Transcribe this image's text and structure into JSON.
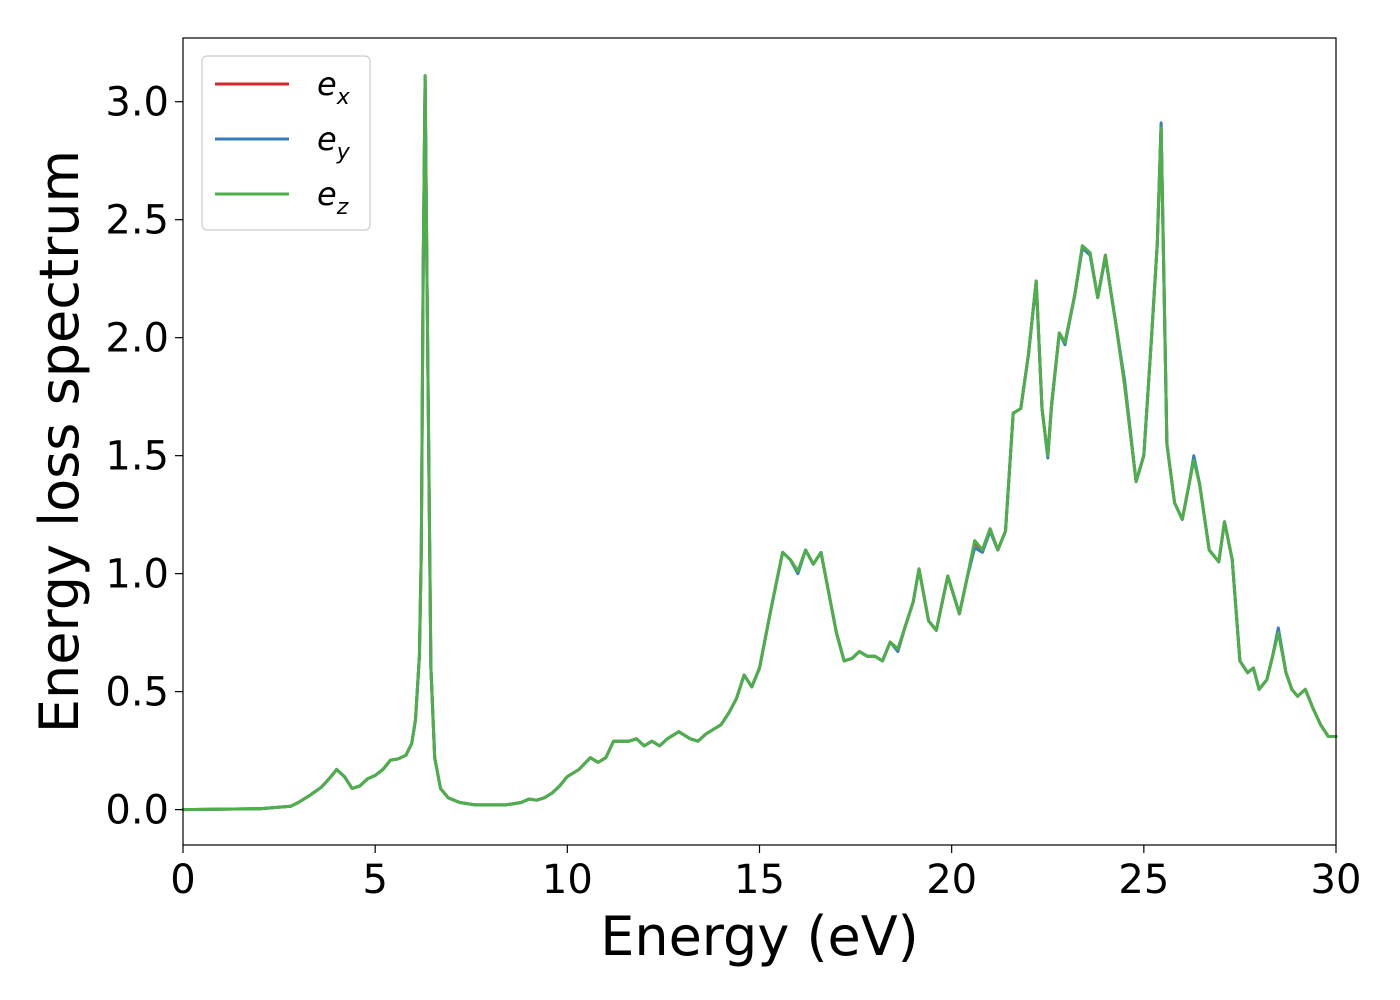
{
  "chart_data": {
    "type": "line",
    "title": "",
    "xlabel": "Energy (eV)",
    "ylabel": "Energy loss spectrum",
    "xlim": [
      0,
      30
    ],
    "ylim": [
      -0.15,
      3.27
    ],
    "xticks": [
      0,
      5,
      10,
      15,
      20,
      25,
      30
    ],
    "xtick_labels": [
      "0",
      "5",
      "10",
      "15",
      "20",
      "25",
      "30"
    ],
    "yticks": [
      0.0,
      0.5,
      1.0,
      1.5,
      2.0,
      2.5,
      3.0
    ],
    "ytick_labels": [
      "0.0",
      "0.5",
      "1.0",
      "1.5",
      "2.0",
      "2.5",
      "3.0"
    ],
    "grid": false,
    "legend_position": "top-left",
    "x": [
      0.0,
      2.0,
      2.8,
      3.0,
      3.3,
      3.6,
      3.8,
      4.0,
      4.2,
      4.4,
      4.6,
      4.8,
      5.0,
      5.2,
      5.4,
      5.6,
      5.8,
      5.95,
      6.05,
      6.15,
      6.2,
      6.25,
      6.3,
      6.35,
      6.45,
      6.55,
      6.7,
      6.9,
      7.2,
      7.6,
      8.0,
      8.4,
      8.8,
      9.0,
      9.2,
      9.4,
      9.6,
      9.8,
      10.0,
      10.3,
      10.6,
      10.8,
      11.0,
      11.2,
      11.4,
      11.6,
      11.8,
      12.0,
      12.2,
      12.4,
      12.6,
      12.9,
      13.2,
      13.4,
      13.6,
      13.8,
      14.0,
      14.2,
      14.4,
      14.6,
      14.8,
      15.0,
      15.3,
      15.6,
      15.8,
      16.0,
      16.2,
      16.4,
      16.6,
      16.8,
      17.0,
      17.2,
      17.4,
      17.6,
      17.8,
      18.0,
      18.2,
      18.4,
      18.6,
      18.8,
      19.0,
      19.15,
      19.4,
      19.6,
      19.9,
      20.2,
      20.4,
      20.6,
      20.8,
      21.0,
      21.2,
      21.4,
      21.6,
      21.8,
      22.0,
      22.2,
      22.35,
      22.5,
      22.6,
      22.8,
      22.95,
      23.2,
      23.4,
      23.6,
      23.8,
      24.0,
      24.1,
      24.3,
      24.5,
      24.8,
      25.0,
      25.2,
      25.35,
      25.45,
      25.6,
      25.8,
      26.0,
      26.2,
      26.3,
      26.45,
      26.7,
      26.95,
      27.1,
      27.3,
      27.5,
      27.7,
      27.85,
      28.0,
      28.2,
      28.35,
      28.5,
      28.7,
      28.85,
      29.0,
      29.2,
      29.4,
      29.6,
      29.8,
      30.0
    ],
    "series": [
      {
        "name": "e_x",
        "color": "#d62728",
        "values": [
          0.0,
          0.004,
          0.014,
          0.03,
          0.06,
          0.095,
          0.13,
          0.17,
          0.14,
          0.09,
          0.1,
          0.13,
          0.145,
          0.17,
          0.21,
          0.215,
          0.23,
          0.28,
          0.38,
          0.65,
          1.1,
          2.3,
          3.11,
          2.2,
          0.6,
          0.22,
          0.09,
          0.05,
          0.03,
          0.02,
          0.02,
          0.02,
          0.03,
          0.045,
          0.04,
          0.05,
          0.07,
          0.1,
          0.14,
          0.17,
          0.22,
          0.2,
          0.22,
          0.29,
          0.29,
          0.29,
          0.3,
          0.27,
          0.29,
          0.27,
          0.3,
          0.33,
          0.3,
          0.29,
          0.32,
          0.34,
          0.36,
          0.41,
          0.47,
          0.57,
          0.52,
          0.6,
          0.85,
          1.09,
          1.06,
          1.01,
          1.1,
          1.04,
          1.09,
          0.92,
          0.75,
          0.63,
          0.64,
          0.67,
          0.65,
          0.65,
          0.63,
          0.71,
          0.68,
          0.78,
          0.88,
          1.02,
          0.8,
          0.76,
          0.99,
          0.83,
          0.98,
          1.13,
          1.1,
          1.19,
          1.1,
          1.18,
          1.68,
          1.7,
          1.93,
          2.24,
          1.7,
          1.5,
          1.72,
          2.02,
          1.98,
          2.18,
          2.38,
          2.36,
          2.17,
          2.35,
          2.24,
          2.03,
          1.8,
          1.39,
          1.5,
          2.0,
          2.4,
          2.9,
          1.55,
          1.3,
          1.23,
          1.4,
          1.49,
          1.38,
          1.1,
          1.05,
          1.22,
          1.06,
          0.63,
          0.58,
          0.6,
          0.51,
          0.55,
          0.65,
          0.76,
          0.58,
          0.51,
          0.48,
          0.51,
          0.43,
          0.36,
          0.31,
          0.31
        ]
      },
      {
        "name": "e_y",
        "color": "#377eb8",
        "values": [
          0.0,
          0.004,
          0.014,
          0.03,
          0.06,
          0.095,
          0.13,
          0.17,
          0.14,
          0.09,
          0.1,
          0.13,
          0.145,
          0.17,
          0.21,
          0.215,
          0.23,
          0.28,
          0.38,
          0.65,
          1.1,
          2.3,
          3.11,
          2.2,
          0.6,
          0.22,
          0.09,
          0.05,
          0.03,
          0.02,
          0.02,
          0.02,
          0.03,
          0.045,
          0.04,
          0.05,
          0.07,
          0.1,
          0.14,
          0.17,
          0.22,
          0.2,
          0.22,
          0.29,
          0.29,
          0.29,
          0.3,
          0.27,
          0.29,
          0.27,
          0.3,
          0.33,
          0.3,
          0.29,
          0.32,
          0.34,
          0.36,
          0.41,
          0.47,
          0.57,
          0.52,
          0.6,
          0.85,
          1.09,
          1.06,
          1.0,
          1.1,
          1.04,
          1.09,
          0.92,
          0.75,
          0.63,
          0.64,
          0.67,
          0.65,
          0.65,
          0.63,
          0.71,
          0.67,
          0.78,
          0.88,
          1.02,
          0.8,
          0.76,
          0.99,
          0.83,
          0.98,
          1.11,
          1.09,
          1.18,
          1.1,
          1.18,
          1.68,
          1.7,
          1.93,
          2.24,
          1.7,
          1.49,
          1.71,
          2.02,
          1.97,
          2.18,
          2.38,
          2.35,
          2.17,
          2.34,
          2.24,
          2.03,
          1.82,
          1.39,
          1.5,
          2.0,
          2.4,
          2.91,
          1.55,
          1.3,
          1.23,
          1.4,
          1.5,
          1.38,
          1.1,
          1.05,
          1.22,
          1.06,
          0.63,
          0.58,
          0.6,
          0.51,
          0.55,
          0.65,
          0.77,
          0.58,
          0.51,
          0.48,
          0.51,
          0.43,
          0.36,
          0.31,
          0.31
        ]
      },
      {
        "name": "e_z",
        "color": "#4daf4a",
        "values": [
          0.0,
          0.004,
          0.014,
          0.03,
          0.06,
          0.095,
          0.13,
          0.17,
          0.14,
          0.09,
          0.1,
          0.13,
          0.145,
          0.17,
          0.21,
          0.215,
          0.23,
          0.28,
          0.38,
          0.65,
          1.1,
          2.3,
          3.11,
          2.2,
          0.6,
          0.22,
          0.09,
          0.05,
          0.03,
          0.02,
          0.02,
          0.02,
          0.03,
          0.045,
          0.04,
          0.05,
          0.07,
          0.1,
          0.14,
          0.17,
          0.22,
          0.2,
          0.22,
          0.29,
          0.29,
          0.29,
          0.3,
          0.27,
          0.29,
          0.27,
          0.3,
          0.33,
          0.3,
          0.29,
          0.32,
          0.34,
          0.36,
          0.41,
          0.47,
          0.57,
          0.52,
          0.6,
          0.85,
          1.09,
          1.06,
          1.01,
          1.1,
          1.04,
          1.09,
          0.92,
          0.75,
          0.63,
          0.64,
          0.67,
          0.65,
          0.65,
          0.63,
          0.71,
          0.68,
          0.78,
          0.88,
          1.02,
          0.8,
          0.76,
          0.99,
          0.83,
          0.98,
          1.14,
          1.1,
          1.19,
          1.1,
          1.18,
          1.68,
          1.7,
          1.93,
          2.24,
          1.7,
          1.5,
          1.72,
          2.02,
          1.98,
          2.18,
          2.39,
          2.36,
          2.17,
          2.35,
          2.24,
          2.03,
          1.8,
          1.39,
          1.5,
          2.0,
          2.4,
          2.89,
          1.55,
          1.3,
          1.23,
          1.4,
          1.48,
          1.38,
          1.1,
          1.05,
          1.22,
          1.06,
          0.63,
          0.58,
          0.6,
          0.51,
          0.55,
          0.65,
          0.75,
          0.58,
          0.51,
          0.48,
          0.51,
          0.43,
          0.36,
          0.31,
          0.31
        ]
      }
    ],
    "legend": [
      {
        "base": "e",
        "sub": "x",
        "color": "#d62728"
      },
      {
        "base": "e",
        "sub": "y",
        "color": "#377eb8"
      },
      {
        "base": "e",
        "sub": "z",
        "color": "#4daf4a"
      }
    ]
  }
}
